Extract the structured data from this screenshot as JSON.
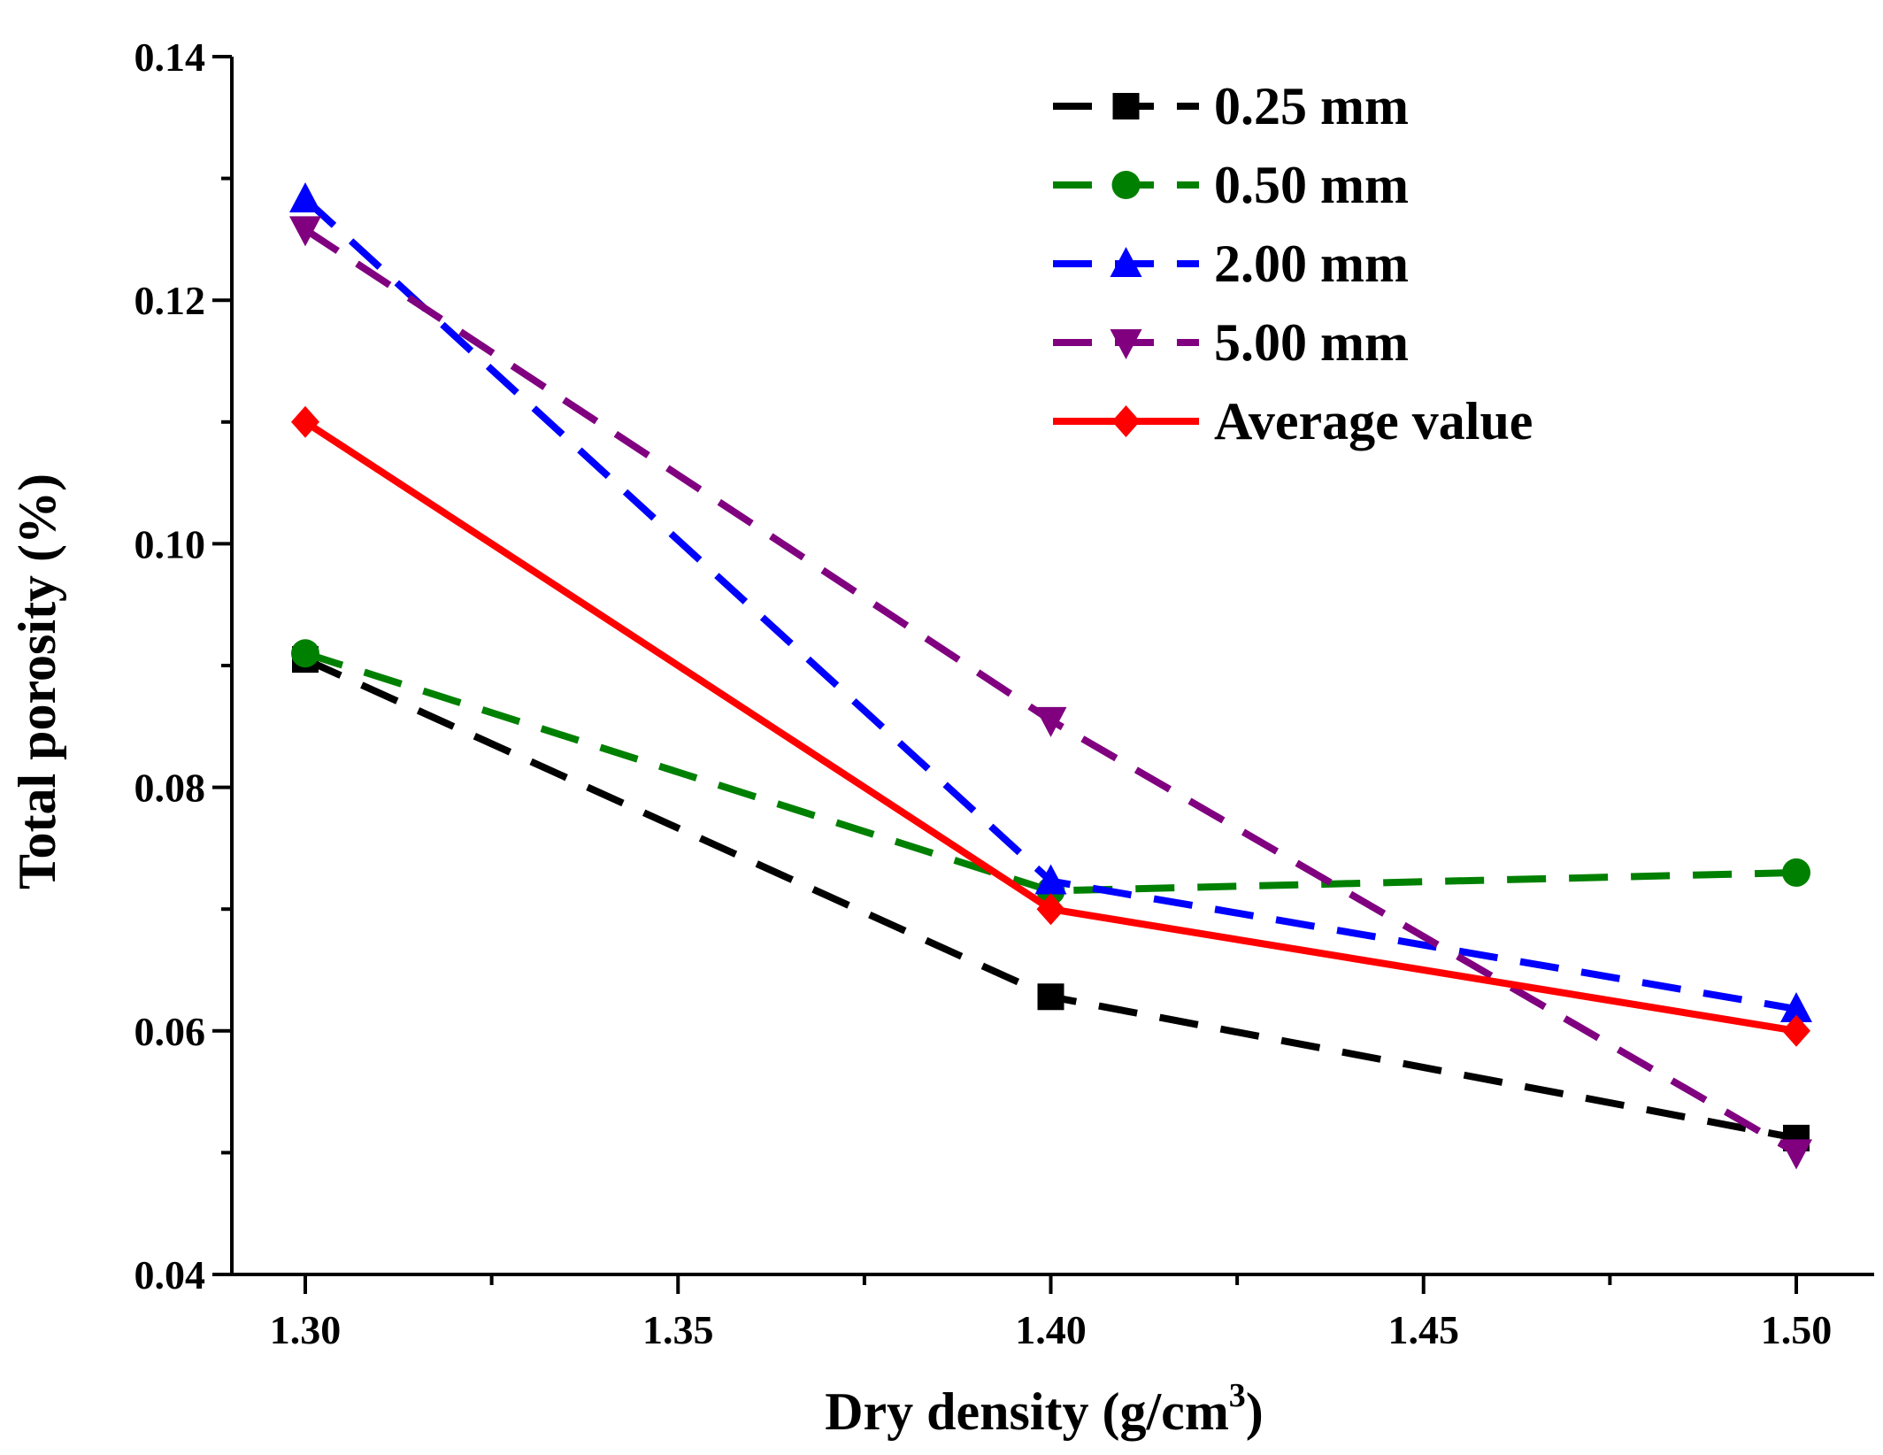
{
  "chart_data": {
    "type": "line",
    "title": "",
    "xlabel": "Dry density (g/cm",
    "xlabel_superscript": "3",
    "xlabel_suffix": ")",
    "ylabel": "Total porosity (%)",
    "xlim": [
      1.29,
      1.51
    ],
    "ylim": [
      0.04,
      0.14
    ],
    "x_ticks": [
      1.3,
      1.35,
      1.4,
      1.45,
      1.5
    ],
    "x_tick_labels": [
      "1.30",
      "1.35",
      "1.40",
      "1.45",
      "1.50"
    ],
    "x_minor_ticks": [
      1.325,
      1.375,
      1.425,
      1.475
    ],
    "y_ticks": [
      0.04,
      0.06,
      0.08,
      0.1,
      0.12,
      0.14
    ],
    "y_tick_labels": [
      "0.04",
      "0.06",
      "0.08",
      "0.10",
      "0.12",
      "0.14"
    ],
    "y_minor_ticks": [
      0.05,
      0.07,
      0.09,
      0.11,
      0.13
    ],
    "grid": false,
    "legend_position": "top-right",
    "x": [
      1.3,
      1.4,
      1.5
    ],
    "series": [
      {
        "name": "0.25 mm",
        "values": [
          0.0905,
          0.0628,
          0.0512
        ],
        "color": "#000000",
        "dash": "dashed",
        "marker": "square"
      },
      {
        "name": "0.50 mm",
        "values": [
          0.091,
          0.0715,
          0.073
        ],
        "color": "#008000",
        "dash": "dashed",
        "marker": "circle"
      },
      {
        "name": "2.00 mm",
        "values": [
          0.1283,
          0.0723,
          0.0618
        ],
        "color": "#0000FF",
        "dash": "dashed",
        "marker": "triangle-up"
      },
      {
        "name": "5.00 mm",
        "values": [
          0.1258,
          0.0855,
          0.05
        ],
        "color": "#800080",
        "dash": "dashed",
        "marker": "triangle-down"
      },
      {
        "name": "Average value",
        "values": [
          0.11,
          0.07,
          0.06
        ],
        "color": "#FF0000",
        "dash": "solid",
        "marker": "diamond"
      }
    ]
  }
}
